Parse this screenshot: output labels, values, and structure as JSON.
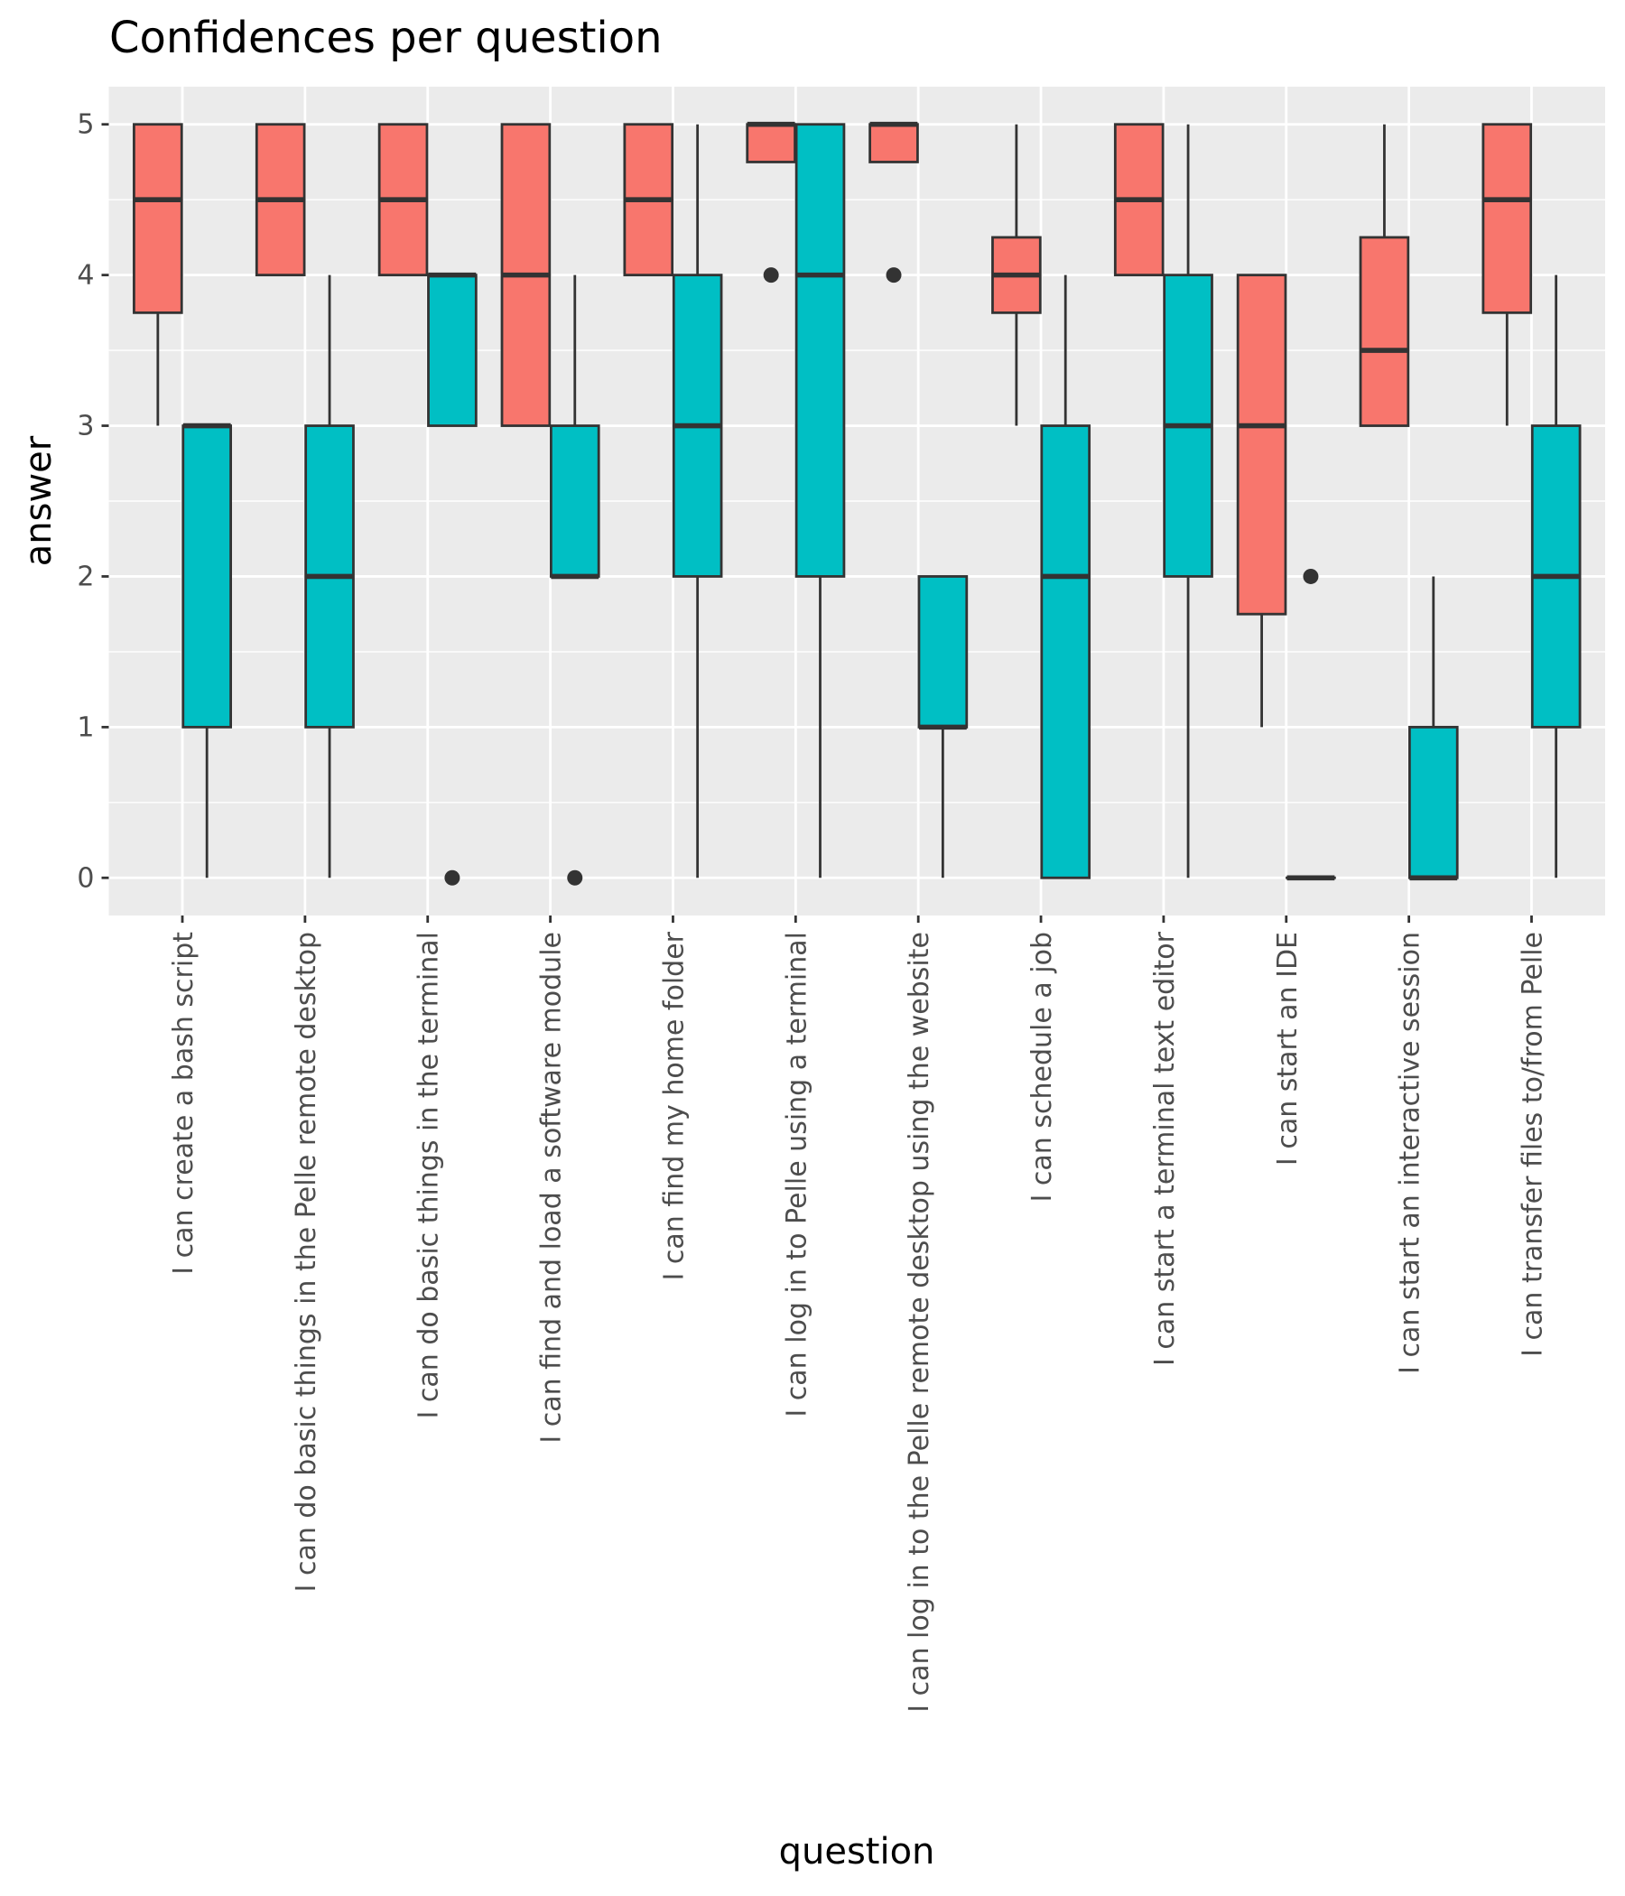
{
  "chart_data": {
    "type": "boxplot",
    "title": "Confidences per question",
    "xlabel": "question",
    "ylabel": "answer",
    "ylim": [
      -0.25,
      5.25
    ],
    "yticks": [
      0,
      1,
      2,
      3,
      4,
      5
    ],
    "grid": true,
    "legend": "none",
    "colors": {
      "group1": "#F8766D",
      "group2": "#00BFC4",
      "outline": "#333333",
      "panel": "#EBEBEB",
      "grid": "#FFFFFF"
    },
    "categories": [
      "I can create a bash script",
      "I can do basic things in the Pelle remote desktop",
      "I can do basic things in the terminal",
      "I can find and load a software module",
      "I can find my home folder",
      "I can log in to Pelle using a terminal",
      "I can log in to the Pelle remote desktop using the website",
      "I can schedule a job",
      "I can start a terminal text editor",
      "I can start an IDE",
      "I can start an interactive session",
      "I can transfer files to/from Pelle"
    ],
    "series": [
      {
        "name": "group1",
        "color": "#F8766D",
        "boxes": [
          {
            "lower": 3,
            "q1": 3.75,
            "median": 4.5,
            "q3": 5,
            "upper": 5,
            "outliers": []
          },
          {
            "lower": 4,
            "q1": 4,
            "median": 4.5,
            "q3": 5,
            "upper": 5,
            "outliers": []
          },
          {
            "lower": 4,
            "q1": 4,
            "median": 4.5,
            "q3": 5,
            "upper": 5,
            "outliers": []
          },
          {
            "lower": 3,
            "q1": 3,
            "median": 4,
            "q3": 5,
            "upper": 5,
            "outliers": []
          },
          {
            "lower": 4,
            "q1": 4,
            "median": 4.5,
            "q3": 5,
            "upper": 5,
            "outliers": []
          },
          {
            "lower": 4.75,
            "q1": 4.75,
            "median": 5,
            "q3": 5,
            "upper": 5,
            "outliers": [
              4
            ]
          },
          {
            "lower": 4.75,
            "q1": 4.75,
            "median": 5,
            "q3": 5,
            "upper": 5,
            "outliers": [
              4
            ]
          },
          {
            "lower": 3,
            "q1": 3.75,
            "median": 4,
            "q3": 4.25,
            "upper": 5,
            "outliers": []
          },
          {
            "lower": 4,
            "q1": 4,
            "median": 4.5,
            "q3": 5,
            "upper": 5,
            "outliers": []
          },
          {
            "lower": 1,
            "q1": 1.75,
            "median": 3,
            "q3": 4,
            "upper": 4,
            "outliers": []
          },
          {
            "lower": 3,
            "q1": 3,
            "median": 3.5,
            "q3": 4.25,
            "upper": 5,
            "outliers": []
          },
          {
            "lower": 3,
            "q1": 3.75,
            "median": 4.5,
            "q3": 5,
            "upper": 5,
            "outliers": []
          }
        ]
      },
      {
        "name": "group2",
        "color": "#00BFC4",
        "boxes": [
          {
            "lower": 0,
            "q1": 1,
            "median": 3,
            "q3": 3,
            "upper": 3,
            "outliers": []
          },
          {
            "lower": 0,
            "q1": 1,
            "median": 2,
            "q3": 3,
            "upper": 4,
            "outliers": []
          },
          {
            "lower": 3,
            "q1": 3,
            "median": 4,
            "q3": 4,
            "upper": 4,
            "outliers": [
              0
            ]
          },
          {
            "lower": 2,
            "q1": 2,
            "median": 2,
            "q3": 3,
            "upper": 4,
            "outliers": [
              0
            ]
          },
          {
            "lower": 0,
            "q1": 2,
            "median": 3,
            "q3": 4,
            "upper": 5,
            "outliers": []
          },
          {
            "lower": 0,
            "q1": 2,
            "median": 4,
            "q3": 5,
            "upper": 5,
            "outliers": []
          },
          {
            "lower": 0,
            "q1": 1,
            "median": 1,
            "q3": 2,
            "upper": 2,
            "outliers": []
          },
          {
            "lower": 0,
            "q1": 0,
            "median": 2,
            "q3": 3,
            "upper": 4,
            "outliers": []
          },
          {
            "lower": 0,
            "q1": 2,
            "median": 3,
            "q3": 4,
            "upper": 5,
            "outliers": []
          },
          {
            "lower": 0,
            "q1": 0,
            "median": 0,
            "q3": 0,
            "upper": 0,
            "outliers": [
              2
            ]
          },
          {
            "lower": 0,
            "q1": 0,
            "median": 0,
            "q3": 1,
            "upper": 2,
            "outliers": []
          },
          {
            "lower": 0,
            "q1": 1,
            "median": 2,
            "q3": 3,
            "upper": 4,
            "outliers": []
          }
        ]
      }
    ]
  }
}
